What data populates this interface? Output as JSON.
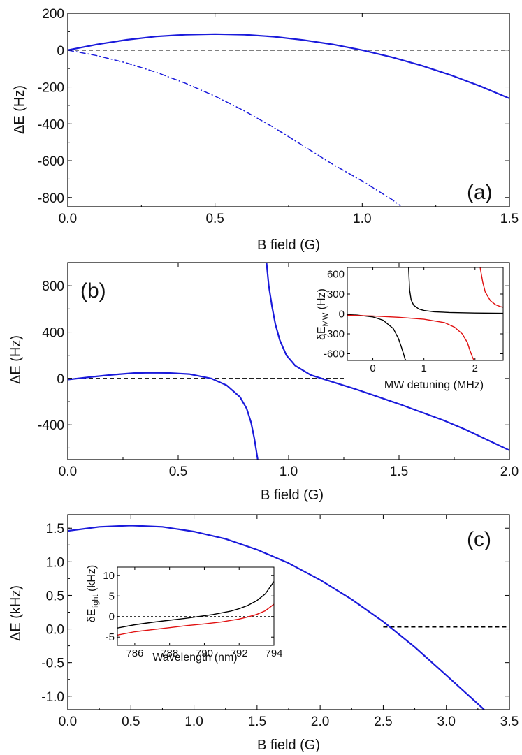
{
  "chart_data": [
    {
      "type": "line",
      "panel_label": "(a)",
      "xlabel": "B field (G)",
      "ylabel": "ΔE (Hz)",
      "xlim": [
        0,
        1.5
      ],
      "ylim": [
        -850,
        200
      ],
      "xticks": [
        0.0,
        0.5,
        1.0,
        1.5
      ],
      "xtick_labels": [
        "0.0",
        "0.5",
        "1.0",
        "1.5"
      ],
      "yticks": [
        200,
        0,
        -200,
        -400,
        -600,
        -800
      ],
      "ytick_labels": [
        "200",
        "0",
        "-200",
        "-400",
        "-600",
        "-800"
      ],
      "series": [
        {
          "name": "solid",
          "style": "solid",
          "color": "#1a1adb",
          "x": [
            0,
            0.1,
            0.2,
            0.3,
            0.4,
            0.5,
            0.6,
            0.7,
            0.8,
            0.9,
            1.0,
            1.1,
            1.2,
            1.3,
            1.4,
            1.5
          ],
          "y": [
            0,
            31,
            56,
            74,
            84,
            87,
            84,
            73,
            55,
            31,
            0,
            -38,
            -83,
            -135,
            -195,
            -262
          ]
        },
        {
          "name": "dash-dot",
          "style": "dashdot",
          "color": "#1a1adb",
          "x": [
            0,
            0.1,
            0.2,
            0.3,
            0.4,
            0.5,
            0.6,
            0.7,
            0.8,
            0.9,
            1.0,
            1.05,
            1.1,
            1.13
          ],
          "y": [
            0,
            -30,
            -70,
            -120,
            -180,
            -250,
            -330,
            -420,
            -520,
            -620,
            -710,
            -760,
            -810,
            -845
          ]
        }
      ],
      "reference_line": {
        "y": 0,
        "x_range": [
          0,
          1.5
        ],
        "color": "#000000"
      }
    },
    {
      "type": "line",
      "panel_label": "(b)",
      "xlabel": "B field (G)",
      "ylabel": "ΔE (Hz)",
      "xlim": [
        0,
        2.0
      ],
      "ylim": [
        -700,
        1000
      ],
      "xticks": [
        0.0,
        0.5,
        1.0,
        1.5,
        2.0
      ],
      "xtick_labels": [
        "0.0",
        "0.5",
        "1.0",
        "1.5",
        "2.0"
      ],
      "yticks": [
        800,
        400,
        0,
        -400
      ],
      "ytick_labels": [
        "800",
        "400",
        "0",
        "-400"
      ],
      "series": [
        {
          "name": "branch-left",
          "style": "solid",
          "color": "#1a1adb",
          "x": [
            0,
            0.1,
            0.2,
            0.3,
            0.37,
            0.45,
            0.55,
            0.65,
            0.72,
            0.78,
            0.81,
            0.83,
            0.845,
            0.855,
            0.86
          ],
          "y": [
            -10,
            12,
            32,
            47,
            50,
            48,
            38,
            0,
            -60,
            -160,
            -260,
            -380,
            -520,
            -640,
            -700
          ]
        },
        {
          "name": "branch-right",
          "style": "solid",
          "color": "#1a1adb",
          "x": [
            0.9,
            0.91,
            0.925,
            0.94,
            0.96,
            0.99,
            1.03,
            1.1,
            1.2,
            1.3,
            1.4,
            1.5,
            1.6,
            1.7,
            1.8,
            1.9,
            2.0
          ],
          "y": [
            1000,
            800,
            620,
            470,
            330,
            200,
            110,
            30,
            -30,
            -90,
            -155,
            -220,
            -290,
            -360,
            -440,
            -530,
            -620
          ]
        }
      ],
      "reference_line": {
        "y": 0,
        "x_range": [
          0,
          1.25
        ],
        "color": "#000000"
      },
      "inset": {
        "xlabel": "MW detuning (MHz)",
        "ylabel_base": "δE",
        "ylabel_sub": "MW",
        "ylabel_unit": " (Hz)",
        "xlim": [
          -0.5,
          2.55
        ],
        "ylim": [
          -700,
          700
        ],
        "xticks": [
          0,
          1,
          2
        ],
        "xtick_labels": [
          "0",
          "1",
          "2"
        ],
        "yticks": [
          600,
          300,
          0,
          -300,
          -600
        ],
        "ytick_labels": [
          "600",
          "300",
          "0",
          "-300",
          "-600"
        ],
        "series": [
          {
            "name": "black-upper",
            "color": "#000000",
            "x": [
              0.7,
              0.72,
              0.75,
              0.8,
              0.9,
              1.0,
              1.2,
              1.5,
              2.0,
              2.55
            ],
            "y": [
              700,
              360,
              210,
              130,
              75,
              52,
              33,
              22,
              14,
              10
            ]
          },
          {
            "name": "black-lower",
            "color": "#000000",
            "x": [
              -0.5,
              -0.3,
              0,
              0.2,
              0.4,
              0.5,
              0.55,
              0.6,
              0.63,
              0.65
            ],
            "y": [
              -10,
              -18,
              -45,
              -95,
              -220,
              -370,
              -480,
              -600,
              -680,
              -700
            ]
          },
          {
            "name": "red-upper",
            "color": "#e01010",
            "x": [
              2.1,
              2.15,
              2.2,
              2.3,
              2.4,
              2.5,
              2.55
            ],
            "y": [
              700,
              480,
              330,
              200,
              140,
              110,
              100
            ]
          },
          {
            "name": "red-lower",
            "color": "#e01010",
            "x": [
              -0.5,
              0,
              0.5,
              1.0,
              1.4,
              1.6,
              1.75,
              1.85,
              1.9,
              1.95,
              1.98
            ],
            "y": [
              -20,
              -30,
              -50,
              -80,
              -130,
              -200,
              -300,
              -430,
              -550,
              -650,
              -700
            ]
          }
        ],
        "reference_line": {
          "y": 0
        }
      }
    },
    {
      "type": "line",
      "panel_label": "(c)",
      "xlabel": "B field (G)",
      "ylabel": "ΔE (kHz)",
      "xlim": [
        0,
        3.5
      ],
      "ylim": [
        -1.2,
        1.7
      ],
      "xticks": [
        0.0,
        0.5,
        1.0,
        1.5,
        2.0,
        2.5,
        3.0,
        3.5
      ],
      "xtick_labels": [
        "0.0",
        "0.5",
        "1.0",
        "1.5",
        "2.0",
        "2.5",
        "3.0",
        "3.5"
      ],
      "yticks": [
        1.5,
        1.0,
        0.5,
        0.0,
        -0.5,
        -1.0
      ],
      "ytick_labels": [
        "1.5",
        "1.0",
        "0.5",
        "0.0",
        "-0.5",
        "-1.0"
      ],
      "series": [
        {
          "name": "solid",
          "style": "solid",
          "color": "#1a1adb",
          "x": [
            0,
            0.25,
            0.5,
            0.75,
            1.0,
            1.25,
            1.5,
            1.75,
            2.0,
            2.25,
            2.5,
            2.75,
            3.0,
            3.3
          ],
          "y": [
            1.46,
            1.52,
            1.54,
            1.52,
            1.45,
            1.34,
            1.18,
            0.98,
            0.73,
            0.44,
            0.11,
            -0.27,
            -0.69,
            -1.2
          ]
        }
      ],
      "reference_line": {
        "y": 0.03,
        "x_range": [
          2.5,
          3.5
        ],
        "color": "#000000"
      },
      "inset": {
        "xlabel": "Wavelength (nm)",
        "ylabel_base": "δE",
        "ylabel_sub": "light",
        "ylabel_unit": " (kHz)",
        "xlim": [
          785,
          794
        ],
        "ylim": [
          -7,
          12
        ],
        "xticks": [
          786,
          788,
          790,
          792,
          794
        ],
        "xtick_labels": [
          "786",
          "788",
          "790",
          "792",
          "794"
        ],
        "yticks": [
          10,
          5,
          0,
          -5
        ],
        "ytick_labels": [
          "10",
          "5",
          "0",
          "-5"
        ],
        "series": [
          {
            "name": "black",
            "color": "#000000",
            "x": [
              785,
              786,
              787,
              788,
              789,
              790,
              790.5,
              791,
              791.5,
              792,
              792.5,
              793,
              793.5,
              794
            ],
            "y": [
              -2.8,
              -2.0,
              -1.4,
              -0.9,
              -0.4,
              0.2,
              0.5,
              0.9,
              1.3,
              1.9,
              2.7,
              3.8,
              5.5,
              8.5
            ]
          },
          {
            "name": "red",
            "color": "#e01010",
            "x": [
              785,
              786,
              787,
              788,
              789,
              790,
              791,
              792,
              792.5,
              793,
              793.5,
              794
            ],
            "y": [
              -4.5,
              -3.7,
              -3.2,
              -2.7,
              -2.2,
              -1.8,
              -1.3,
              -0.6,
              -0.1,
              0.5,
              1.4,
              3.0
            ]
          }
        ],
        "reference_line": {
          "y": 0
        }
      }
    }
  ]
}
